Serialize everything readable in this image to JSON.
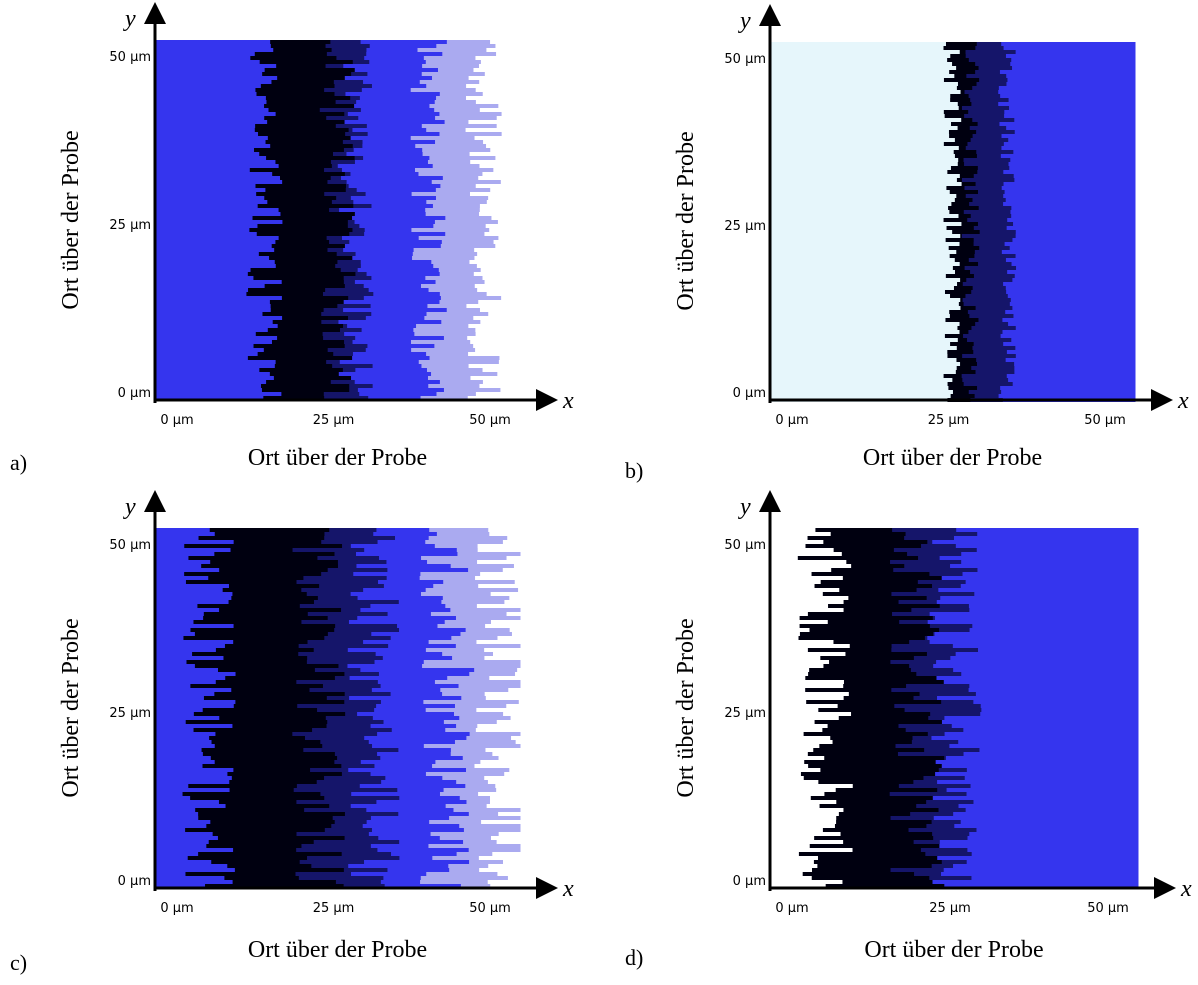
{
  "panels": [
    {
      "label": "a)",
      "y_letter": "y",
      "x_letter": "x",
      "y_axis_title": "Ort über der Probe",
      "x_axis_title": "Ort über der Probe",
      "yticks": [
        "50 µm",
        "25 µm",
        "0 µm"
      ],
      "xticks": [
        "0 µm",
        "25 µm",
        "50 µm"
      ]
    },
    {
      "label": "b)",
      "y_letter": "y",
      "x_letter": "x",
      "y_axis_title": "Ort über der Probe",
      "x_axis_title": "Ort über der Probe",
      "yticks": [
        "50 µm",
        "25 µm",
        "0 µm"
      ],
      "xticks": [
        "0 µm",
        "25 µm",
        "50 µm"
      ]
    },
    {
      "label": "c)",
      "y_letter": "y",
      "x_letter": "x",
      "y_axis_title": "Ort über der Probe",
      "x_axis_title": "Ort über der Probe",
      "yticks": [
        "50 µm",
        "25 µm",
        "0 µm"
      ],
      "xticks": [
        "0 µm",
        "25 µm",
        "50 µm"
      ]
    },
    {
      "label": "d)",
      "y_letter": "y",
      "x_letter": "x",
      "y_axis_title": "Ort über der Probe",
      "x_axis_title": "Ort über der Probe",
      "yticks": [
        "50 µm",
        "25 µm",
        "0 µm"
      ],
      "xticks": [
        "0 µm",
        "25 µm",
        "50 µm"
      ]
    }
  ]
}
